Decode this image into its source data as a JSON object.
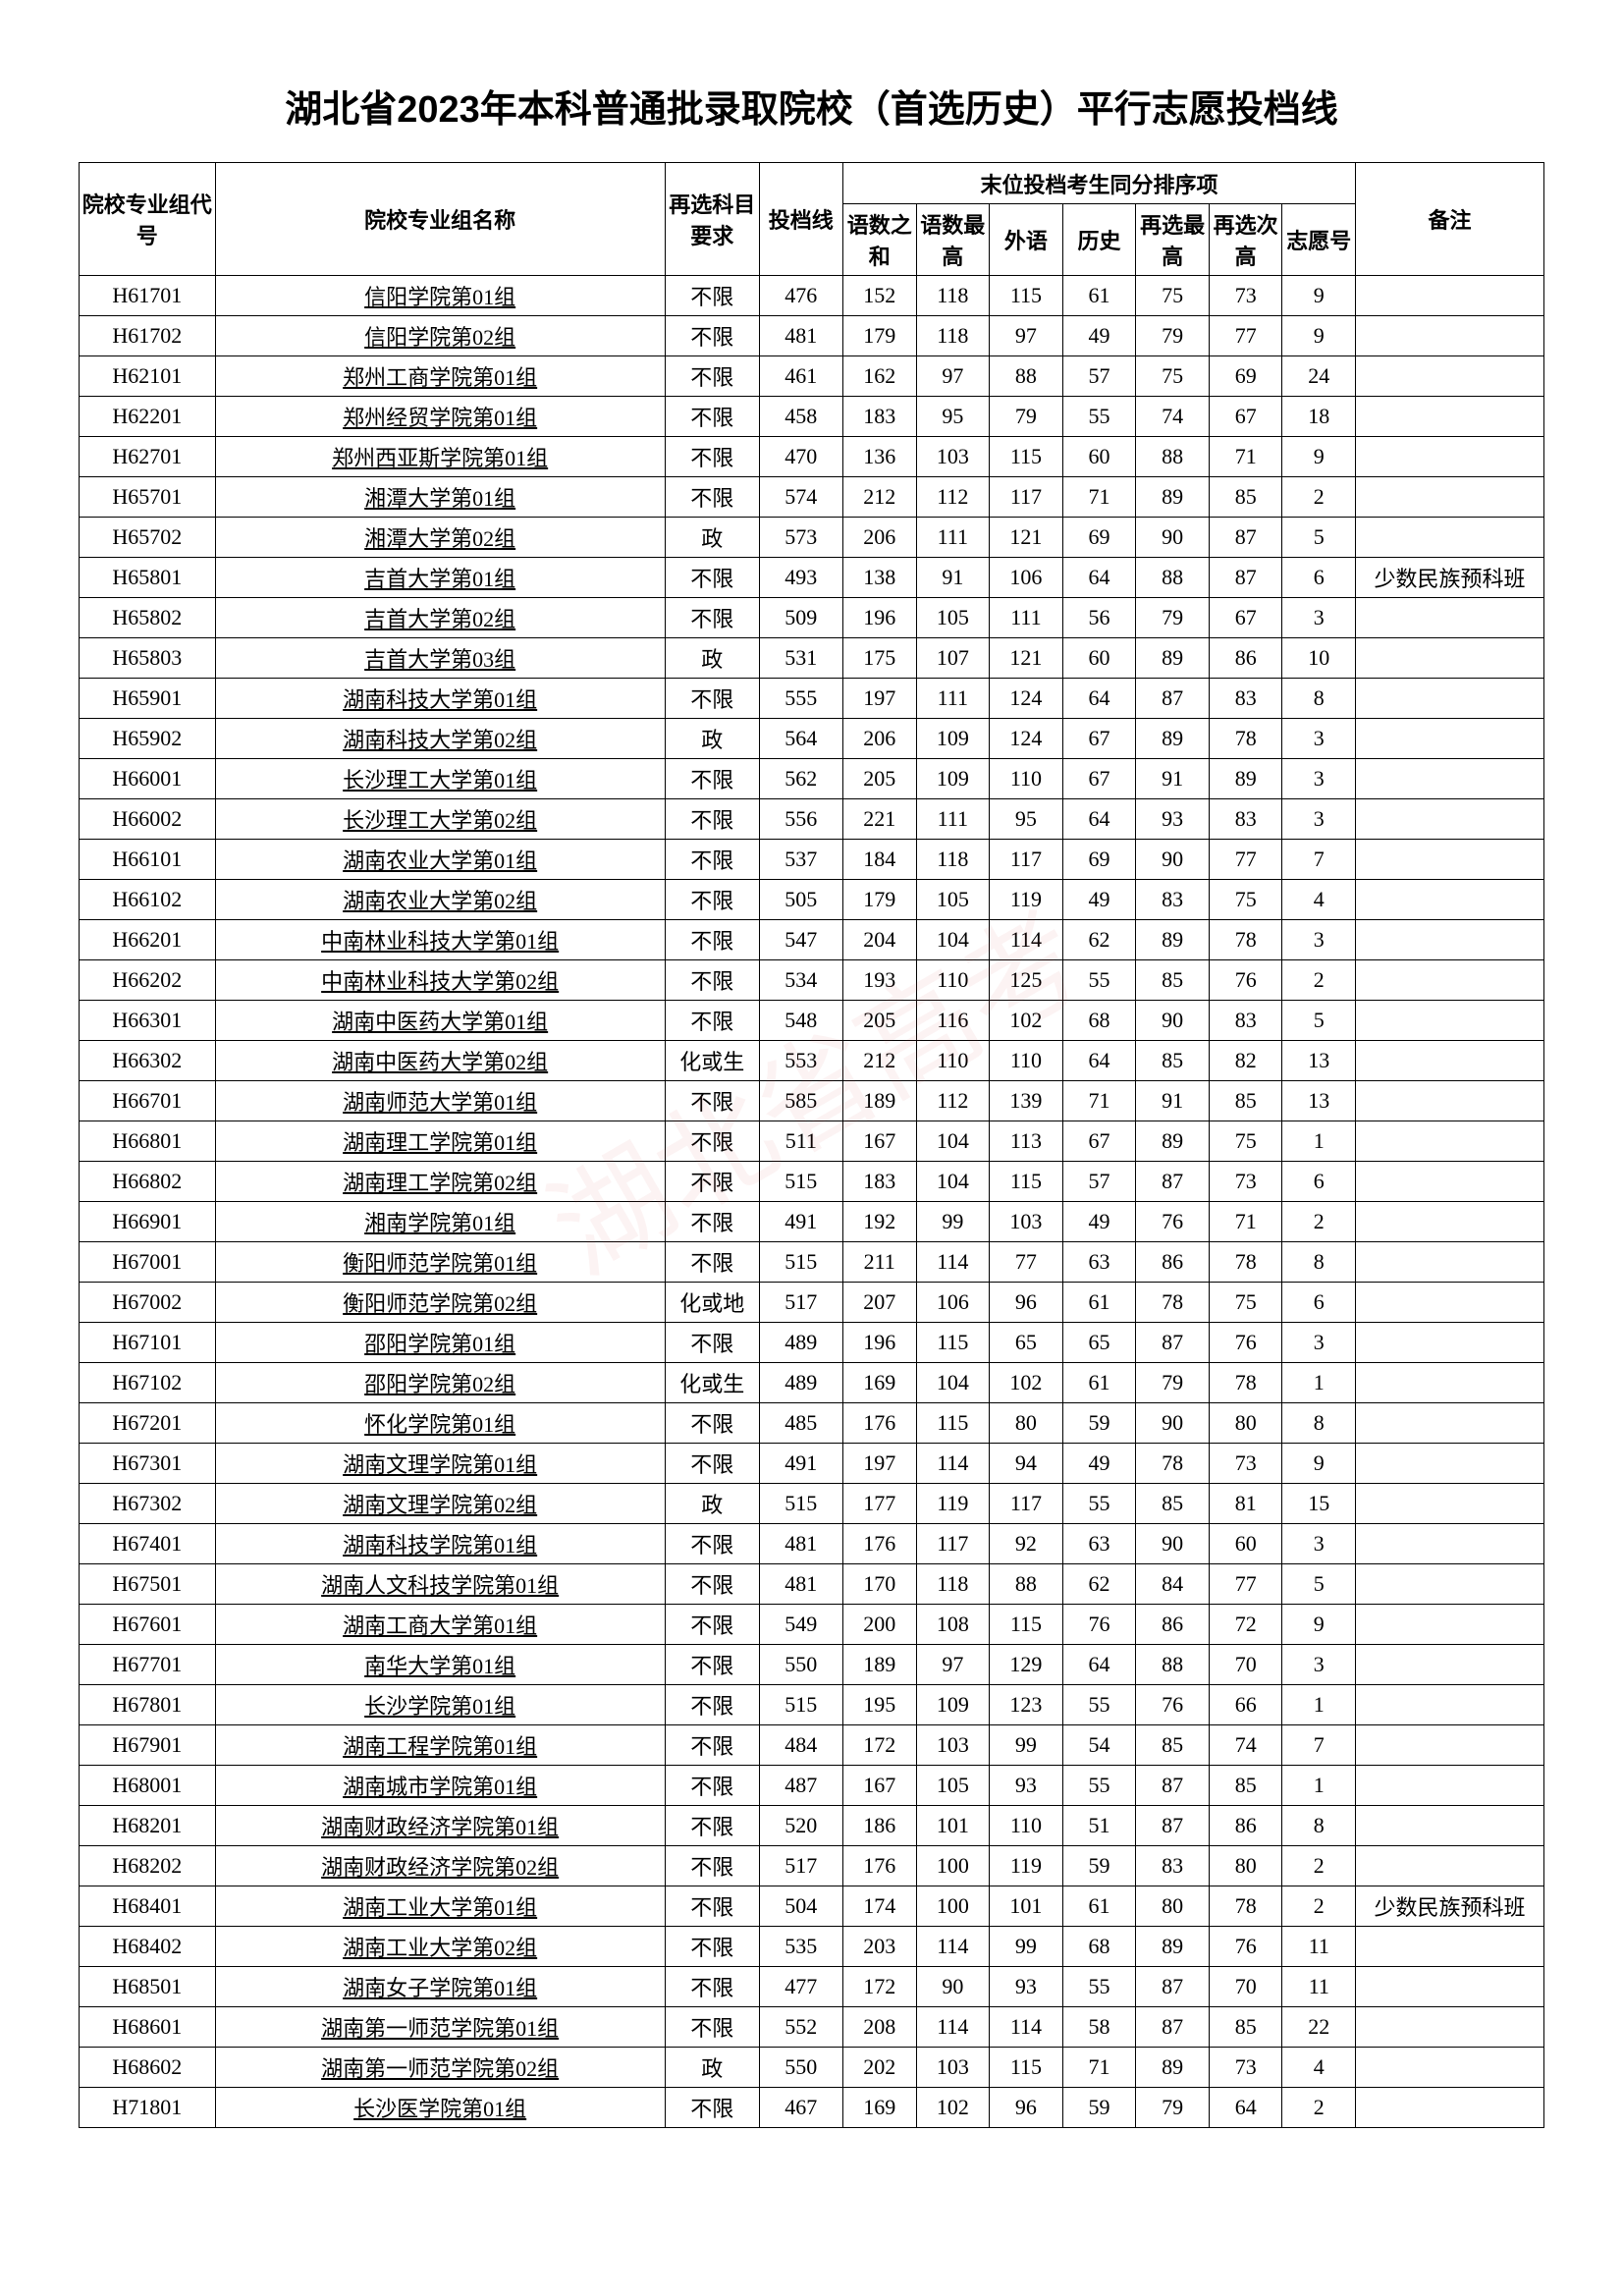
{
  "title": "湖北省2023年本科普通批录取院校（首选历史）平行志愿投档线",
  "headers": {
    "code": "院校专业组代号",
    "name": "院校专业组名称",
    "subject_req": "再选科目要求",
    "score": "投档线",
    "tiebreak_group": "末位投档考生同分排序项",
    "tie1": "语数之和",
    "tie2": "语数最高",
    "tie3": "外语",
    "tie4": "历史",
    "tie5": "再选最高",
    "tie6": "再选次高",
    "tie7": "志愿号",
    "remark": "备注"
  },
  "rows": [
    {
      "code": "H61701",
      "name": "信阳学院第01组",
      "subj": "不限",
      "score": 476,
      "t1": 152,
      "t2": 118,
      "t3": 115,
      "t4": 61,
      "t5": 75,
      "t6": 73,
      "t7": 9,
      "rem": ""
    },
    {
      "code": "H61702",
      "name": "信阳学院第02组",
      "subj": "不限",
      "score": 481,
      "t1": 179,
      "t2": 118,
      "t3": 97,
      "t4": 49,
      "t5": 79,
      "t6": 77,
      "t7": 9,
      "rem": ""
    },
    {
      "code": "H62101",
      "name": "郑州工商学院第01组",
      "subj": "不限",
      "score": 461,
      "t1": 162,
      "t2": 97,
      "t3": 88,
      "t4": 57,
      "t5": 75,
      "t6": 69,
      "t7": 24,
      "rem": ""
    },
    {
      "code": "H62201",
      "name": "郑州经贸学院第01组",
      "subj": "不限",
      "score": 458,
      "t1": 183,
      "t2": 95,
      "t3": 79,
      "t4": 55,
      "t5": 74,
      "t6": 67,
      "t7": 18,
      "rem": ""
    },
    {
      "code": "H62701",
      "name": "郑州西亚斯学院第01组",
      "subj": "不限",
      "score": 470,
      "t1": 136,
      "t2": 103,
      "t3": 115,
      "t4": 60,
      "t5": 88,
      "t6": 71,
      "t7": 9,
      "rem": ""
    },
    {
      "code": "H65701",
      "name": "湘潭大学第01组",
      "subj": "不限",
      "score": 574,
      "t1": 212,
      "t2": 112,
      "t3": 117,
      "t4": 71,
      "t5": 89,
      "t6": 85,
      "t7": 2,
      "rem": ""
    },
    {
      "code": "H65702",
      "name": "湘潭大学第02组",
      "subj": "政",
      "score": 573,
      "t1": 206,
      "t2": 111,
      "t3": 121,
      "t4": 69,
      "t5": 90,
      "t6": 87,
      "t7": 5,
      "rem": ""
    },
    {
      "code": "H65801",
      "name": "吉首大学第01组",
      "subj": "不限",
      "score": 493,
      "t1": 138,
      "t2": 91,
      "t3": 106,
      "t4": 64,
      "t5": 88,
      "t6": 87,
      "t7": 6,
      "rem": "少数民族预科班"
    },
    {
      "code": "H65802",
      "name": "吉首大学第02组",
      "subj": "不限",
      "score": 509,
      "t1": 196,
      "t2": 105,
      "t3": 111,
      "t4": 56,
      "t5": 79,
      "t6": 67,
      "t7": 3,
      "rem": ""
    },
    {
      "code": "H65803",
      "name": "吉首大学第03组",
      "subj": "政",
      "score": 531,
      "t1": 175,
      "t2": 107,
      "t3": 121,
      "t4": 60,
      "t5": 89,
      "t6": 86,
      "t7": 10,
      "rem": ""
    },
    {
      "code": "H65901",
      "name": "湖南科技大学第01组",
      "subj": "不限",
      "score": 555,
      "t1": 197,
      "t2": 111,
      "t3": 124,
      "t4": 64,
      "t5": 87,
      "t6": 83,
      "t7": 8,
      "rem": ""
    },
    {
      "code": "H65902",
      "name": "湖南科技大学第02组",
      "subj": "政",
      "score": 564,
      "t1": 206,
      "t2": 109,
      "t3": 124,
      "t4": 67,
      "t5": 89,
      "t6": 78,
      "t7": 3,
      "rem": ""
    },
    {
      "code": "H66001",
      "name": "长沙理工大学第01组",
      "subj": "不限",
      "score": 562,
      "t1": 205,
      "t2": 109,
      "t3": 110,
      "t4": 67,
      "t5": 91,
      "t6": 89,
      "t7": 3,
      "rem": ""
    },
    {
      "code": "H66002",
      "name": "长沙理工大学第02组",
      "subj": "不限",
      "score": 556,
      "t1": 221,
      "t2": 111,
      "t3": 95,
      "t4": 64,
      "t5": 93,
      "t6": 83,
      "t7": 3,
      "rem": ""
    },
    {
      "code": "H66101",
      "name": "湖南农业大学第01组",
      "subj": "不限",
      "score": 537,
      "t1": 184,
      "t2": 118,
      "t3": 117,
      "t4": 69,
      "t5": 90,
      "t6": 77,
      "t7": 7,
      "rem": ""
    },
    {
      "code": "H66102",
      "name": "湖南农业大学第02组",
      "subj": "不限",
      "score": 505,
      "t1": 179,
      "t2": 105,
      "t3": 119,
      "t4": 49,
      "t5": 83,
      "t6": 75,
      "t7": 4,
      "rem": ""
    },
    {
      "code": "H66201",
      "name": "中南林业科技大学第01组",
      "subj": "不限",
      "score": 547,
      "t1": 204,
      "t2": 104,
      "t3": 114,
      "t4": 62,
      "t5": 89,
      "t6": 78,
      "t7": 3,
      "rem": ""
    },
    {
      "code": "H66202",
      "name": "中南林业科技大学第02组",
      "subj": "不限",
      "score": 534,
      "t1": 193,
      "t2": 110,
      "t3": 125,
      "t4": 55,
      "t5": 85,
      "t6": 76,
      "t7": 2,
      "rem": ""
    },
    {
      "code": "H66301",
      "name": "湖南中医药大学第01组",
      "subj": "不限",
      "score": 548,
      "t1": 205,
      "t2": 116,
      "t3": 102,
      "t4": 68,
      "t5": 90,
      "t6": 83,
      "t7": 5,
      "rem": ""
    },
    {
      "code": "H66302",
      "name": "湖南中医药大学第02组",
      "subj": "化或生",
      "score": 553,
      "t1": 212,
      "t2": 110,
      "t3": 110,
      "t4": 64,
      "t5": 85,
      "t6": 82,
      "t7": 13,
      "rem": ""
    },
    {
      "code": "H66701",
      "name": "湖南师范大学第01组",
      "subj": "不限",
      "score": 585,
      "t1": 189,
      "t2": 112,
      "t3": 139,
      "t4": 71,
      "t5": 91,
      "t6": 85,
      "t7": 13,
      "rem": ""
    },
    {
      "code": "H66801",
      "name": "湖南理工学院第01组",
      "subj": "不限",
      "score": 511,
      "t1": 167,
      "t2": 104,
      "t3": 113,
      "t4": 67,
      "t5": 89,
      "t6": 75,
      "t7": 1,
      "rem": ""
    },
    {
      "code": "H66802",
      "name": "湖南理工学院第02组",
      "subj": "不限",
      "score": 515,
      "t1": 183,
      "t2": 104,
      "t3": 115,
      "t4": 57,
      "t5": 87,
      "t6": 73,
      "t7": 6,
      "rem": ""
    },
    {
      "code": "H66901",
      "name": "湘南学院第01组",
      "subj": "不限",
      "score": 491,
      "t1": 192,
      "t2": 99,
      "t3": 103,
      "t4": 49,
      "t5": 76,
      "t6": 71,
      "t7": 2,
      "rem": ""
    },
    {
      "code": "H67001",
      "name": "衡阳师范学院第01组",
      "subj": "不限",
      "score": 515,
      "t1": 211,
      "t2": 114,
      "t3": 77,
      "t4": 63,
      "t5": 86,
      "t6": 78,
      "t7": 8,
      "rem": ""
    },
    {
      "code": "H67002",
      "name": "衡阳师范学院第02组",
      "subj": "化或地",
      "score": 517,
      "t1": 207,
      "t2": 106,
      "t3": 96,
      "t4": 61,
      "t5": 78,
      "t6": 75,
      "t7": 6,
      "rem": ""
    },
    {
      "code": "H67101",
      "name": "邵阳学院第01组",
      "subj": "不限",
      "score": 489,
      "t1": 196,
      "t2": 115,
      "t3": 65,
      "t4": 65,
      "t5": 87,
      "t6": 76,
      "t7": 3,
      "rem": ""
    },
    {
      "code": "H67102",
      "name": "邵阳学院第02组",
      "subj": "化或生",
      "score": 489,
      "t1": 169,
      "t2": 104,
      "t3": 102,
      "t4": 61,
      "t5": 79,
      "t6": 78,
      "t7": 1,
      "rem": ""
    },
    {
      "code": "H67201",
      "name": "怀化学院第01组",
      "subj": "不限",
      "score": 485,
      "t1": 176,
      "t2": 115,
      "t3": 80,
      "t4": 59,
      "t5": 90,
      "t6": 80,
      "t7": 8,
      "rem": ""
    },
    {
      "code": "H67301",
      "name": "湖南文理学院第01组",
      "subj": "不限",
      "score": 491,
      "t1": 197,
      "t2": 114,
      "t3": 94,
      "t4": 49,
      "t5": 78,
      "t6": 73,
      "t7": 9,
      "rem": ""
    },
    {
      "code": "H67302",
      "name": "湖南文理学院第02组",
      "subj": "政",
      "score": 515,
      "t1": 177,
      "t2": 119,
      "t3": 117,
      "t4": 55,
      "t5": 85,
      "t6": 81,
      "t7": 15,
      "rem": ""
    },
    {
      "code": "H67401",
      "name": "湖南科技学院第01组",
      "subj": "不限",
      "score": 481,
      "t1": 176,
      "t2": 117,
      "t3": 92,
      "t4": 63,
      "t5": 90,
      "t6": 60,
      "t7": 3,
      "rem": ""
    },
    {
      "code": "H67501",
      "name": "湖南人文科技学院第01组",
      "subj": "不限",
      "score": 481,
      "t1": 170,
      "t2": 118,
      "t3": 88,
      "t4": 62,
      "t5": 84,
      "t6": 77,
      "t7": 5,
      "rem": ""
    },
    {
      "code": "H67601",
      "name": "湖南工商大学第01组",
      "subj": "不限",
      "score": 549,
      "t1": 200,
      "t2": 108,
      "t3": 115,
      "t4": 76,
      "t5": 86,
      "t6": 72,
      "t7": 9,
      "rem": ""
    },
    {
      "code": "H67701",
      "name": "南华大学第01组",
      "subj": "不限",
      "score": 550,
      "t1": 189,
      "t2": 97,
      "t3": 129,
      "t4": 64,
      "t5": 88,
      "t6": 70,
      "t7": 3,
      "rem": ""
    },
    {
      "code": "H67801",
      "name": "长沙学院第01组",
      "subj": "不限",
      "score": 515,
      "t1": 195,
      "t2": 109,
      "t3": 123,
      "t4": 55,
      "t5": 76,
      "t6": 66,
      "t7": 1,
      "rem": ""
    },
    {
      "code": "H67901",
      "name": "湖南工程学院第01组",
      "subj": "不限",
      "score": 484,
      "t1": 172,
      "t2": 103,
      "t3": 99,
      "t4": 54,
      "t5": 85,
      "t6": 74,
      "t7": 7,
      "rem": ""
    },
    {
      "code": "H68001",
      "name": "湖南城市学院第01组",
      "subj": "不限",
      "score": 487,
      "t1": 167,
      "t2": 105,
      "t3": 93,
      "t4": 55,
      "t5": 87,
      "t6": 85,
      "t7": 1,
      "rem": ""
    },
    {
      "code": "H68201",
      "name": "湖南财政经济学院第01组",
      "subj": "不限",
      "score": 520,
      "t1": 186,
      "t2": 101,
      "t3": 110,
      "t4": 51,
      "t5": 87,
      "t6": 86,
      "t7": 8,
      "rem": ""
    },
    {
      "code": "H68202",
      "name": "湖南财政经济学院第02组",
      "subj": "不限",
      "score": 517,
      "t1": 176,
      "t2": 100,
      "t3": 119,
      "t4": 59,
      "t5": 83,
      "t6": 80,
      "t7": 2,
      "rem": ""
    },
    {
      "code": "H68401",
      "name": "湖南工业大学第01组",
      "subj": "不限",
      "score": 504,
      "t1": 174,
      "t2": 100,
      "t3": 101,
      "t4": 61,
      "t5": 80,
      "t6": 78,
      "t7": 2,
      "rem": "少数民族预科班"
    },
    {
      "code": "H68402",
      "name": "湖南工业大学第02组",
      "subj": "不限",
      "score": 535,
      "t1": 203,
      "t2": 114,
      "t3": 99,
      "t4": 68,
      "t5": 89,
      "t6": 76,
      "t7": 11,
      "rem": ""
    },
    {
      "code": "H68501",
      "name": "湖南女子学院第01组",
      "subj": "不限",
      "score": 477,
      "t1": 172,
      "t2": 90,
      "t3": 93,
      "t4": 55,
      "t5": 87,
      "t6": 70,
      "t7": 11,
      "rem": ""
    },
    {
      "code": "H68601",
      "name": "湖南第一师范学院第01组",
      "subj": "不限",
      "score": 552,
      "t1": 208,
      "t2": 114,
      "t3": 114,
      "t4": 58,
      "t5": 87,
      "t6": 85,
      "t7": 22,
      "rem": ""
    },
    {
      "code": "H68602",
      "name": "湖南第一师范学院第02组",
      "subj": "政",
      "score": 550,
      "t1": 202,
      "t2": 103,
      "t3": 115,
      "t4": 71,
      "t5": 89,
      "t6": 73,
      "t7": 4,
      "rem": ""
    },
    {
      "code": "H71801",
      "name": "长沙医学院第01组",
      "subj": "不限",
      "score": 467,
      "t1": 169,
      "t2": 102,
      "t3": 96,
      "t4": 59,
      "t5": 79,
      "t6": 64,
      "t7": 2,
      "rem": ""
    }
  ]
}
